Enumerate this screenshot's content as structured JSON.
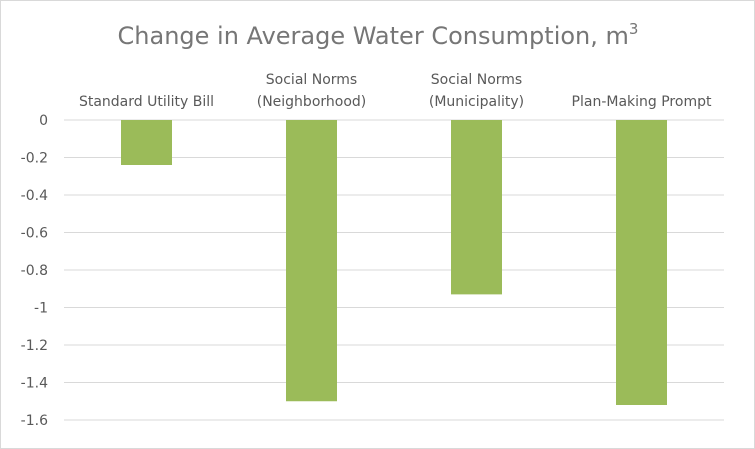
{
  "chart_data": {
    "type": "bar",
    "title": "Change in Average Water Consumption, m",
    "title_superscript": "3",
    "categories": [
      [
        "Standard Utility Bill"
      ],
      [
        "Social Norms",
        "(Neighborhood)"
      ],
      [
        "Social Norms",
        "(Municipality)"
      ],
      [
        "Plan-Making Prompt"
      ]
    ],
    "values": [
      -0.24,
      -1.5,
      -0.93,
      -1.52
    ],
    "ylim": [
      -1.6,
      0
    ],
    "yticks": [
      0,
      -0.2,
      -0.4,
      -0.6,
      -0.8,
      -1,
      -1.2,
      -1.4,
      -1.6
    ],
    "ytick_labels": [
      "0",
      "-0.2",
      "-0.4",
      "-0.6",
      "-0.8",
      "-1",
      "-1.2",
      "-1.4",
      "-1.6"
    ],
    "grid": true,
    "bar_color": "#9bbb59",
    "grid_color": "#d9d9d9"
  }
}
